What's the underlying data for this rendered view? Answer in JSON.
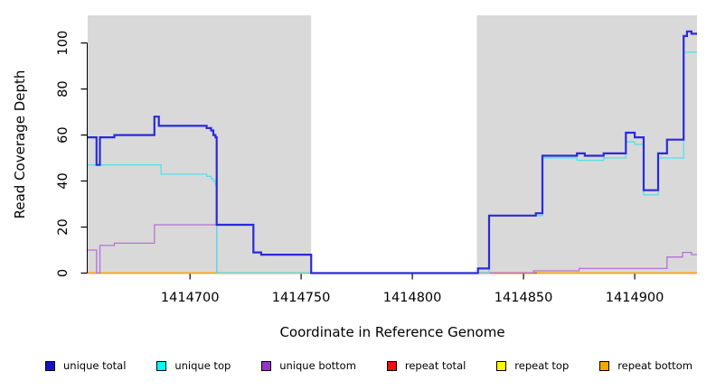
{
  "titles": {
    "x_axis": "Coordinate in Reference Genome",
    "y_axis": "Read Coverage Depth"
  },
  "legend": {
    "items": [
      {
        "label": "unique total",
        "color": "#1212CC"
      },
      {
        "label": "unique top",
        "color": "#00FFFF"
      },
      {
        "label": "unique bottom",
        "color": "#9932CC"
      },
      {
        "label": "repeat total",
        "color": "#EE1111"
      },
      {
        "label": "repeat top",
        "color": "#FFFF00"
      },
      {
        "label": "repeat bottom",
        "color": "#FFA500"
      }
    ]
  },
  "chart_data": {
    "type": "line",
    "subtype": "step-after",
    "title": "",
    "xlabel": "Coordinate in Reference Genome",
    "ylabel": "Read Coverage Depth",
    "xlim": [
      1414654,
      1414928
    ],
    "ylim": [
      0,
      112
    ],
    "xticks": [
      1414700,
      1414750,
      1414800,
      1414850,
      1414900
    ],
    "yticks": [
      0,
      20,
      40,
      60,
      80,
      100
    ],
    "grid": false,
    "legend_position": "bottom",
    "background_bands": {
      "color": "#D9D9D9",
      "note": "gray repeat-region bands; white gap between",
      "regions": [
        [
          1414654,
          1414754.5
        ],
        [
          1414829,
          1414928
        ]
      ]
    },
    "series": [
      {
        "name": "repeat bottom",
        "color": "#FFA500",
        "render_color": "#FFA200",
        "width": 1.7,
        "xend": 1414928,
        "points": [
          [
            1414654,
            0
          ]
        ]
      },
      {
        "name": "repeat top",
        "color": "#FFFF00",
        "render_color": "#8FDC8F",
        "width": 1.4,
        "xend": 1414754.5,
        "points": [
          [
            1414712,
            0
          ]
        ]
      },
      {
        "name": "repeat total",
        "color": "#EE1111",
        "render_color": "#C9475E",
        "width": 1.4,
        "xend": 1414856,
        "points": [
          [
            1414829,
            0
          ]
        ]
      },
      {
        "name": "unique bottom",
        "color": "#9932CC",
        "render_color": "#B472D8",
        "width": 1.3,
        "xend": 1414928,
        "points": [
          [
            1414654,
            10
          ],
          [
            1414658,
            0
          ],
          [
            1414659.5,
            12
          ],
          [
            1414666,
            13
          ],
          [
            1414684,
            21
          ],
          [
            1414712,
            0
          ],
          [
            1414854.5,
            1
          ],
          [
            1414875,
            2
          ],
          [
            1414914.5,
            7
          ],
          [
            1414921.5,
            9
          ],
          [
            1414925.5,
            8
          ]
        ]
      },
      {
        "name": "unique top",
        "color": "#00FFFF",
        "render_color": "#53E1EA",
        "width": 1.3,
        "xend": 1414928,
        "points": [
          [
            1414654,
            47
          ],
          [
            1414687,
            43
          ],
          [
            1414707.5,
            42
          ],
          [
            1414709.5,
            41
          ],
          [
            1414710.5,
            40
          ],
          [
            1414711.5,
            38
          ],
          [
            1414712,
            0
          ],
          [
            1414834.5,
            25
          ],
          [
            1414858.5,
            50
          ],
          [
            1414874,
            49
          ],
          [
            1414886,
            50
          ],
          [
            1414896,
            57
          ],
          [
            1414900,
            56
          ],
          [
            1414904,
            34
          ],
          [
            1414910.5,
            50
          ],
          [
            1414922,
            96
          ]
        ]
      },
      {
        "name": "unique total",
        "color": "#1212CC",
        "render_color": "#2A2ADB",
        "width": 2.2,
        "xend": 1414928,
        "points": [
          [
            1414654,
            59
          ],
          [
            1414658,
            47
          ],
          [
            1414659.5,
            59
          ],
          [
            1414666,
            60
          ],
          [
            1414684,
            68
          ],
          [
            1414686,
            64
          ],
          [
            1414707.5,
            63
          ],
          [
            1414709.5,
            62
          ],
          [
            1414710.5,
            60
          ],
          [
            1414711.5,
            59
          ],
          [
            1414712,
            21
          ],
          [
            1414728.5,
            9
          ],
          [
            1414732,
            8
          ],
          [
            1414754.5,
            0
          ],
          [
            1414829.5,
            2
          ],
          [
            1414834.5,
            25
          ],
          [
            1414855.5,
            26
          ],
          [
            1414858.5,
            51
          ],
          [
            1414874,
            52
          ],
          [
            1414877.5,
            51
          ],
          [
            1414886,
            52
          ],
          [
            1414896,
            61
          ],
          [
            1414900,
            59
          ],
          [
            1414904,
            36
          ],
          [
            1414910.5,
            52
          ],
          [
            1414914.5,
            58
          ],
          [
            1414922,
            103
          ],
          [
            1414923.5,
            105
          ],
          [
            1414925.5,
            104
          ]
        ]
      }
    ]
  }
}
